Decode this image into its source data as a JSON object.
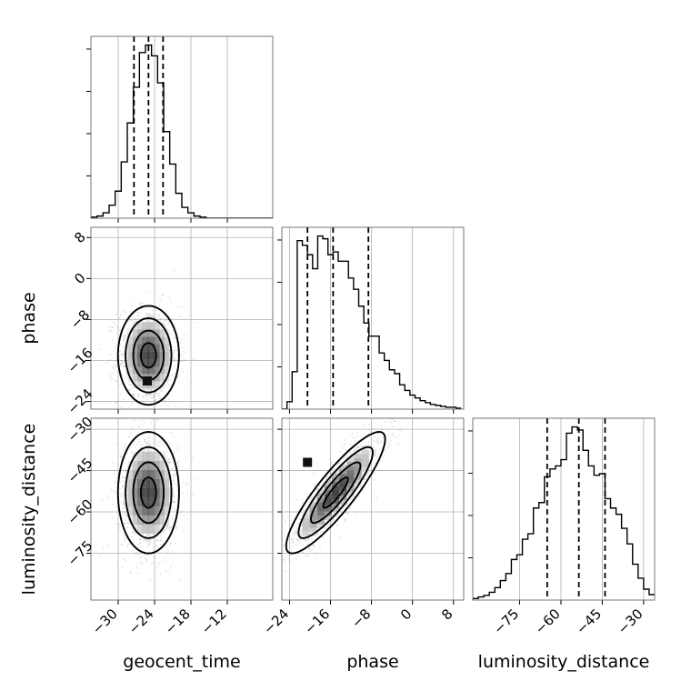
{
  "chart_data": {
    "type": "corner",
    "parameters": [
      "geocent_time",
      "phase",
      "luminosity_distance"
    ],
    "axis_labels": {
      "x": [
        "geocent_time",
        "phase",
        "luminosity_distance"
      ],
      "y": [
        "",
        "phase",
        "luminosity_distance"
      ]
    },
    "ranges": {
      "geocent_time": [
        -34.5,
        -4.5
      ],
      "phase": [
        -25.5,
        10.0
      ],
      "luminosity_distance": [
        -92.0,
        -26.0
      ]
    },
    "ticks": {
      "geocent_time": [
        -30,
        -24,
        -18,
        -12
      ],
      "phase": [
        -24,
        -16,
        -8,
        0,
        8
      ],
      "luminosity_distance": [
        -75,
        -60,
        -45,
        -30
      ]
    },
    "histograms": [
      {
        "parameter": "geocent_time",
        "bin_edges": [
          -34.5,
          -33.5,
          -32.5,
          -31.5,
          -30.5,
          -29.5,
          -28.5,
          -27.5,
          -26.5,
          -25.5,
          -24.5,
          -23.5,
          -22.5,
          -21.5,
          -20.5,
          -19.5,
          -18.5,
          -17.5,
          -16.5,
          -15.5,
          -14.5,
          -13.5,
          -12.5,
          -11.5,
          -10.5,
          -9.5,
          -8.5,
          -7.5,
          -6.5,
          -5.5,
          -4.5
        ],
        "counts": [
          1,
          2,
          5,
          12,
          25,
          52,
          88,
          121,
          153,
          160,
          150,
          125,
          80,
          50,
          23,
          10,
          5,
          2,
          1,
          0,
          0,
          0,
          0,
          0,
          0,
          0,
          0,
          0,
          0,
          0
        ],
        "quantiles": [
          -27.4,
          -25.0,
          -22.6
        ]
      },
      {
        "parameter": "phase",
        "bin_edges": [
          -25.5,
          -24.5,
          -23.5,
          -22.5,
          -21.5,
          -20.5,
          -19.5,
          -18.5,
          -17.5,
          -16.5,
          -15.5,
          -14.5,
          -13.5,
          -12.5,
          -11.5,
          -10.5,
          -9.5,
          -8.5,
          -7.5,
          -6.5,
          -5.5,
          -4.5,
          -3.5,
          -2.5,
          -1.5,
          -0.5,
          0.5,
          1.5,
          2.5,
          3.5,
          4.5,
          5.5,
          6.5,
          7.5,
          8.5,
          9.5
        ],
        "counts": [
          0,
          8,
          40,
          180,
          175,
          165,
          150,
          185,
          182,
          165,
          168,
          158,
          158,
          140,
          128,
          110,
          92,
          78,
          78,
          60,
          52,
          42,
          38,
          26,
          20,
          15,
          12,
          9,
          7,
          5,
          4,
          3,
          2,
          2,
          1
        ],
        "quantiles": [
          -20.5,
          -15.5,
          -8.6
        ]
      },
      {
        "parameter": "luminosity_distance",
        "bin_edges": [
          -92,
          -90,
          -88,
          -86,
          -84,
          -82,
          -80,
          -78,
          -76,
          -74,
          -72,
          -70,
          -68,
          -66,
          -64,
          -62,
          -60,
          -58,
          -56,
          -54,
          -52,
          -50,
          -48,
          -46,
          -44,
          -42,
          -40,
          -38,
          -36,
          -34,
          -32,
          -30,
          -28,
          -26
        ],
        "counts": [
          2,
          4,
          6,
          10,
          16,
          25,
          34,
          52,
          58,
          78,
          85,
          118,
          125,
          158,
          168,
          172,
          180,
          214,
          222,
          218,
          192,
          172,
          160,
          162,
          130,
          118,
          110,
          92,
          72,
          46,
          28,
          14,
          7
        ],
        "quantiles": [
          -65.0,
          -53.5,
          -44.0
        ]
      }
    ],
    "density_panels": [
      {
        "x": "geocent_time",
        "y": "phase",
        "center": [
          -25.0,
          -15.0
        ],
        "sigma": [
          2.4,
          4.6
        ],
        "rho": 0.0,
        "mode": [
          -25.2,
          -20.0
        ]
      },
      {
        "x": "geocent_time",
        "y": "luminosity_distance",
        "center": [
          -25.0,
          -53.0
        ],
        "sigma": [
          2.4,
          10.5
        ],
        "rho": 0.0
      },
      {
        "x": "phase",
        "y": "luminosity_distance",
        "center": [
          -15.0,
          -53.0
        ],
        "sigma": [
          4.6,
          10.5
        ],
        "rho": 0.88,
        "mode": [
          -20.5,
          -42.0
        ]
      }
    ],
    "contour_levels": [
      0.5,
      1.0,
      1.5,
      2.0
    ],
    "grid": true,
    "legend": "none"
  }
}
